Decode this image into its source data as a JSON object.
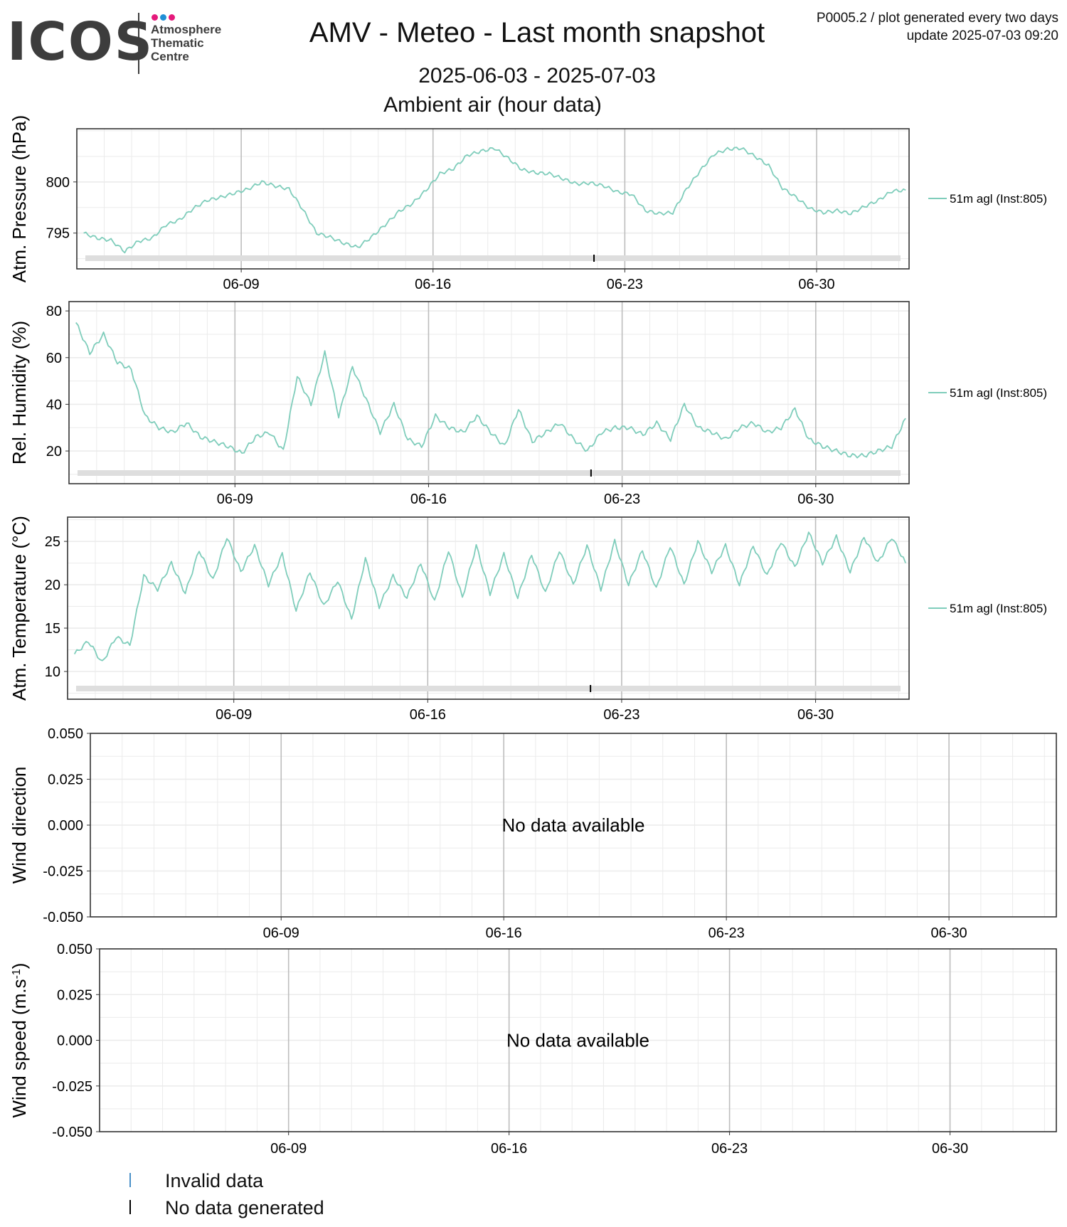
{
  "logo": {
    "text": "ICOS",
    "sub_lines": [
      "Atmosphere",
      "Thematic",
      "Centre"
    ],
    "dot_colors": [
      "#e5197b",
      "#1f8fd6",
      "#e5197b"
    ]
  },
  "header": {
    "title": "AMV - Meteo - Last month snapshot",
    "meta_line1": "P0005.2 / plot generated every two days",
    "meta_line2": "update  2025-07-03 09:20",
    "date_range": "2025-06-03 - 2025-07-03",
    "subtitle": "Ambient air (hour data)"
  },
  "colors": {
    "series": "#7fcdbb",
    "grid_major": "#bdbdbd",
    "grid_minor": "#ebebeb",
    "band": "#dedede",
    "no_data_mark": "#000000",
    "invalid_mark": "#4a90c8"
  },
  "chart_data": [
    {
      "type": "line",
      "ylabel": "Atm. Pressure (hPa)",
      "x_ticks": [
        "06-09",
        "06-16",
        "06-23",
        "06-30"
      ],
      "x_range": [
        "2025-06-03",
        "2025-07-03 09:00"
      ],
      "ylim": [
        791.5,
        805.2
      ],
      "y_ticks": [
        795,
        800
      ],
      "grid": true,
      "legend_position": "right",
      "no_data_marker_date": "2025-06-21 21:00",
      "series": [
        {
          "name": "51m agl (Inst:805)",
          "x": [
            "06-03 06:00",
            "06-03 18:00",
            "06-04 06:00",
            "06-04 18:00",
            "06-05 06:00",
            "06-05 18:00",
            "06-06 06:00",
            "06-06 18:00",
            "06-07 06:00",
            "06-07 18:00",
            "06-08 06:00",
            "06-08 18:00",
            "06-09 06:00",
            "06-09 18:00",
            "06-10 06:00",
            "06-10 18:00",
            "06-11 06:00",
            "06-11 18:00",
            "06-12 06:00",
            "06-12 18:00",
            "06-13 06:00",
            "06-13 18:00",
            "06-14 06:00",
            "06-14 18:00",
            "06-15 06:00",
            "06-15 18:00",
            "06-16 06:00",
            "06-16 18:00",
            "06-17 06:00",
            "06-17 18:00",
            "06-18 06:00",
            "06-18 18:00",
            "06-19 06:00",
            "06-19 18:00",
            "06-20 06:00",
            "06-20 18:00",
            "06-21 06:00",
            "06-21 18:00",
            "06-22 06:00",
            "06-22 18:00",
            "06-23 06:00",
            "06-23 18:00",
            "06-24 06:00",
            "06-24 18:00",
            "06-25 06:00",
            "06-25 18:00",
            "06-26 06:00",
            "06-26 18:00",
            "06-27 06:00",
            "06-27 18:00",
            "06-28 06:00",
            "06-28 18:00",
            "06-29 06:00",
            "06-29 18:00",
            "06-30 06:00",
            "06-30 18:00",
            "07-01 06:00",
            "07-01 18:00",
            "07-02 06:00",
            "07-02 18:00",
            "07-03 06:00"
          ],
          "values": [
            795.0,
            794.5,
            794.3,
            793.2,
            794.2,
            794.5,
            795.8,
            796.3,
            797.4,
            798.2,
            798.5,
            798.9,
            799.3,
            800.0,
            799.6,
            799.3,
            797.3,
            795.0,
            794.6,
            794.0,
            793.6,
            794.6,
            795.8,
            797.1,
            797.9,
            799.2,
            800.8,
            801.3,
            802.6,
            803.0,
            803.3,
            802.3,
            801.2,
            800.9,
            800.8,
            800.3,
            799.8,
            799.9,
            799.6,
            799.0,
            798.8,
            797.2,
            796.9,
            797.0,
            799.3,
            801.1,
            802.7,
            803.2,
            803.3,
            802.5,
            801.6,
            799.4,
            798.5,
            797.4,
            797.0,
            797.2,
            796.9,
            797.6,
            798.2,
            799.1,
            799.2
          ]
        }
      ]
    },
    {
      "type": "line",
      "ylabel": "Rel. Humidity (%)",
      "x_ticks": [
        "06-09",
        "06-16",
        "06-23",
        "06-30"
      ],
      "x_range": [
        "2025-06-03",
        "2025-07-03 09:00"
      ],
      "ylim": [
        6.0,
        84.0
      ],
      "y_ticks": [
        20,
        40,
        60,
        80
      ],
      "grid": true,
      "legend_position": "right",
      "no_data_marker_date": "2025-06-21 21:00",
      "series": [
        {
          "name": "51m agl (Inst:805)",
          "x": [
            "06-03 06:00",
            "06-03 18:00",
            "06-04 06:00",
            "06-04 18:00",
            "06-05 06:00",
            "06-05 18:00",
            "06-06 06:00",
            "06-06 18:00",
            "06-07 06:00",
            "06-07 18:00",
            "06-08 06:00",
            "06-08 18:00",
            "06-09 06:00",
            "06-09 18:00",
            "06-10 06:00",
            "06-10 18:00",
            "06-11 06:00",
            "06-11 18:00",
            "06-12 06:00",
            "06-12 18:00",
            "06-13 06:00",
            "06-13 18:00",
            "06-14 06:00",
            "06-14 18:00",
            "06-15 06:00",
            "06-15 18:00",
            "06-16 06:00",
            "06-16 18:00",
            "06-17 06:00",
            "06-17 18:00",
            "06-18 06:00",
            "06-18 18:00",
            "06-19 06:00",
            "06-19 18:00",
            "06-20 06:00",
            "06-20 18:00",
            "06-21 06:00",
            "06-21 18:00",
            "06-22 06:00",
            "06-22 18:00",
            "06-23 06:00",
            "06-23 18:00",
            "06-24 06:00",
            "06-24 18:00",
            "06-25 06:00",
            "06-25 18:00",
            "06-26 06:00",
            "06-26 18:00",
            "06-27 06:00",
            "06-27 18:00",
            "06-28 06:00",
            "06-28 18:00",
            "06-29 06:00",
            "06-29 18:00",
            "06-30 06:00",
            "06-30 18:00",
            "07-01 06:00",
            "07-01 18:00",
            "07-02 06:00",
            "07-02 18:00",
            "07-03 06:00"
          ],
          "values": [
            75,
            62,
            70,
            58,
            55,
            35,
            30,
            28,
            32,
            26,
            24,
            22,
            19,
            26,
            28,
            20,
            52,
            40,
            62,
            35,
            56,
            42,
            28,
            40,
            25,
            22,
            35,
            30,
            28,
            35,
            28,
            22,
            38,
            24,
            28,
            32,
            25,
            20,
            28,
            30,
            30,
            27,
            32,
            25,
            40,
            30,
            28,
            25,
            30,
            32,
            28,
            30,
            38,
            25,
            22,
            20,
            18,
            18,
            20,
            22,
            34
          ]
        }
      ]
    },
    {
      "type": "line",
      "ylabel": "Atm. Temperature (°C)",
      "x_ticks": [
        "06-09",
        "06-16",
        "06-23",
        "06-30"
      ],
      "x_range": [
        "2025-06-03",
        "2025-07-03 09:00"
      ],
      "ylim": [
        6.8,
        27.8
      ],
      "y_ticks": [
        10,
        15,
        20,
        25
      ],
      "grid": true,
      "legend_position": "right",
      "no_data_marker_date": "2025-06-21 21:00",
      "series": [
        {
          "name": "51m agl (Inst:805)",
          "x": [
            "06-03 06:00",
            "06-03 18:00",
            "06-04 06:00",
            "06-04 18:00",
            "06-05 06:00",
            "06-05 18:00",
            "06-06 06:00",
            "06-06 18:00",
            "06-07 06:00",
            "06-07 18:00",
            "06-08 06:00",
            "06-08 18:00",
            "06-09 06:00",
            "06-09 18:00",
            "06-10 06:00",
            "06-10 18:00",
            "06-11 06:00",
            "06-11 18:00",
            "06-12 06:00",
            "06-12 18:00",
            "06-13 06:00",
            "06-13 18:00",
            "06-14 06:00",
            "06-14 18:00",
            "06-15 06:00",
            "06-15 18:00",
            "06-16 06:00",
            "06-16 18:00",
            "06-17 06:00",
            "06-17 18:00",
            "06-18 06:00",
            "06-18 18:00",
            "06-19 06:00",
            "06-19 18:00",
            "06-20 06:00",
            "06-20 18:00",
            "06-21 06:00",
            "06-21 18:00",
            "06-22 06:00",
            "06-22 18:00",
            "06-23 06:00",
            "06-23 18:00",
            "06-24 06:00",
            "06-24 18:00",
            "06-25 06:00",
            "06-25 18:00",
            "06-26 06:00",
            "06-26 18:00",
            "06-27 06:00",
            "06-27 18:00",
            "06-28 06:00",
            "06-28 18:00",
            "06-29 06:00",
            "06-29 18:00",
            "06-30 06:00",
            "06-30 18:00",
            "07-01 06:00",
            "07-01 18:00",
            "07-02 06:00",
            "07-02 18:00",
            "07-03 06:00"
          ],
          "values": [
            12.0,
            13.5,
            11.0,
            14.0,
            13.0,
            21.0,
            19.5,
            22.5,
            19.0,
            24.0,
            20.5,
            25.5,
            21.5,
            24.5,
            20.0,
            23.5,
            17.0,
            21.5,
            17.5,
            20.5,
            16.0,
            23.0,
            17.5,
            21.0,
            18.5,
            22.5,
            18.0,
            24.0,
            18.5,
            24.5,
            19.0,
            23.5,
            18.5,
            23.5,
            19.0,
            24.0,
            20.0,
            24.5,
            19.5,
            25.0,
            20.0,
            24.0,
            19.5,
            24.5,
            20.0,
            25.0,
            21.5,
            24.5,
            20.0,
            24.5,
            21.0,
            25.0,
            22.0,
            26.0,
            22.5,
            25.5,
            21.5,
            25.5,
            22.5,
            25.5,
            22.5
          ]
        }
      ]
    },
    {
      "type": "line",
      "ylabel": "Wind direction",
      "x_ticks": [
        "06-09",
        "06-16",
        "06-23",
        "06-30"
      ],
      "x_range": [
        "2025-06-03",
        "2025-07-03 09:00"
      ],
      "ylim": [
        -0.05,
        0.05
      ],
      "y_ticks": [
        "-0.050",
        "-0.025",
        "0.000",
        "0.025",
        "0.050"
      ],
      "grid": true,
      "message": "No data available",
      "series": []
    },
    {
      "type": "line",
      "ylabel": "Wind speed (m.s",
      "ylabel_superscript": "-1",
      "ylabel_suffix": ")",
      "x_ticks": [
        "06-09",
        "06-16",
        "06-23",
        "06-30"
      ],
      "x_range": [
        "2025-06-03",
        "2025-07-03 09:00"
      ],
      "ylim": [
        -0.05,
        0.05
      ],
      "y_ticks": [
        "-0.050",
        "-0.025",
        "0.000",
        "0.025",
        "0.050"
      ],
      "grid": true,
      "message": "No data available",
      "series": []
    }
  ],
  "legend": {
    "items": [
      {
        "label": "Invalid data",
        "color": "#4a90c8"
      },
      {
        "label": "No data generated",
        "color": "#000000"
      }
    ]
  }
}
